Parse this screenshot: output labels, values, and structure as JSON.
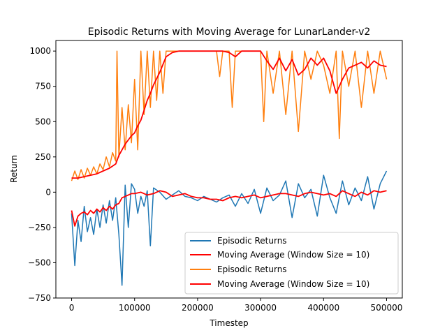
{
  "chart_data": {
    "type": "line",
    "title": "Episodic Returns with Moving Average for LunarLander-v2",
    "xlabel": "Timestep",
    "ylabel": "Return",
    "xlim": [
      -25000,
      525000
    ],
    "ylim": [
      -750,
      1075
    ],
    "xticks": [
      0,
      100000,
      200000,
      300000,
      400000,
      500000
    ],
    "xtick_labels": [
      "0",
      "100000",
      "200000",
      "300000",
      "400000",
      "500000"
    ],
    "yticks": [
      -750,
      -500,
      -250,
      0,
      250,
      500,
      750,
      1000
    ],
    "ytick_labels": [
      "−750",
      "−500",
      "−250",
      "0",
      "250",
      "500",
      "750",
      "1000"
    ],
    "grid": false,
    "legend_position": "lower-right",
    "series": [
      {
        "name": "Episodic Returns",
        "color": "#1f77b4",
        "x": [
          0,
          5000,
          10000,
          15000,
          20000,
          25000,
          30000,
          35000,
          40000,
          45000,
          50000,
          55000,
          60000,
          65000,
          70000,
          75000,
          80000,
          85000,
          90000,
          95000,
          100000,
          105000,
          110000,
          115000,
          120000,
          125000,
          130000,
          140000,
          150000,
          160000,
          170000,
          180000,
          190000,
          200000,
          210000,
          220000,
          230000,
          240000,
          250000,
          260000,
          270000,
          280000,
          290000,
          300000,
          310000,
          320000,
          330000,
          340000,
          350000,
          360000,
          370000,
          380000,
          390000,
          400000,
          410000,
          420000,
          430000,
          440000,
          450000,
          460000,
          470000,
          480000,
          490000,
          500000
        ],
        "values": [
          -150,
          -520,
          -200,
          -350,
          -100,
          -280,
          -180,
          -300,
          -120,
          -250,
          -90,
          -220,
          -60,
          -200,
          -40,
          -300,
          -660,
          50,
          -250,
          60,
          20,
          -150,
          -30,
          -100,
          10,
          -380,
          30,
          0,
          -50,
          -20,
          10,
          -30,
          -40,
          -60,
          -30,
          -50,
          -70,
          -40,
          -20,
          -100,
          -10,
          -80,
          20,
          -150,
          30,
          -60,
          -20,
          80,
          -180,
          60,
          -40,
          20,
          -170,
          120,
          -40,
          -150,
          80,
          -90,
          30,
          -60,
          110,
          -120,
          60,
          150
        ]
      },
      {
        "name": "Moving Average (Window Size = 10)",
        "color": "#ff0000",
        "x": [
          0,
          5000,
          10000,
          15000,
          20000,
          25000,
          30000,
          35000,
          40000,
          45000,
          50000,
          55000,
          60000,
          65000,
          70000,
          75000,
          80000,
          85000,
          90000,
          95000,
          100000,
          110000,
          120000,
          130000,
          140000,
          150000,
          160000,
          170000,
          180000,
          190000,
          200000,
          210000,
          220000,
          230000,
          240000,
          250000,
          260000,
          270000,
          280000,
          290000,
          300000,
          310000,
          320000,
          330000,
          340000,
          350000,
          360000,
          370000,
          380000,
          390000,
          400000,
          410000,
          420000,
          430000,
          440000,
          450000,
          460000,
          470000,
          480000,
          490000,
          500000
        ],
        "values": [
          -130,
          -240,
          -170,
          -150,
          -140,
          -160,
          -130,
          -150,
          -120,
          -140,
          -110,
          -130,
          -100,
          -120,
          -90,
          -80,
          -40,
          -30,
          -20,
          -10,
          -10,
          0,
          -20,
          -10,
          10,
          0,
          -30,
          -20,
          -10,
          -30,
          -40,
          -40,
          -50,
          -50,
          -60,
          -40,
          -30,
          -40,
          -30,
          -20,
          -40,
          -30,
          -20,
          -10,
          -10,
          -20,
          -30,
          -10,
          0,
          -10,
          -20,
          -10,
          -30,
          10,
          -10,
          -30,
          0,
          -20,
          10,
          0,
          10
        ]
      },
      {
        "name": "Episodic Returns",
        "color": "#ff7f0e",
        "x": [
          0,
          5000,
          10000,
          15000,
          20000,
          25000,
          30000,
          35000,
          40000,
          45000,
          50000,
          55000,
          60000,
          65000,
          70000,
          72000,
          75000,
          80000,
          85000,
          90000,
          95000,
          100000,
          105000,
          110000,
          115000,
          120000,
          125000,
          130000,
          135000,
          140000,
          145000,
          150000,
          160000,
          170000,
          180000,
          200000,
          220000,
          230000,
          235000,
          240000,
          250000,
          255000,
          260000,
          270000,
          280000,
          290000,
          300000,
          305000,
          310000,
          320000,
          330000,
          340000,
          350000,
          360000,
          370000,
          380000,
          390000,
          400000,
          410000,
          420000,
          425000,
          430000,
          440000,
          450000,
          460000,
          470000,
          480000,
          490000,
          500000
        ],
        "values": [
          80,
          150,
          90,
          160,
          100,
          170,
          120,
          180,
          130,
          200,
          160,
          250,
          180,
          280,
          220,
          1000,
          250,
          600,
          300,
          620,
          350,
          800,
          300,
          1000,
          550,
          1000,
          600,
          1000,
          650,
          1000,
          700,
          1000,
          1000,
          1000,
          1000,
          1000,
          1000,
          1000,
          820,
          1000,
          1000,
          600,
          1000,
          1000,
          1000,
          1000,
          1000,
          500,
          1000,
          700,
          1000,
          550,
          1000,
          430,
          1000,
          800,
          1000,
          900,
          700,
          1000,
          380,
          1000,
          750,
          1000,
          600,
          1000,
          700,
          1000,
          800
        ]
      },
      {
        "name": "Moving Average (Window Size = 10)",
        "color": "#ff0000",
        "x": [
          0,
          10000,
          20000,
          30000,
          40000,
          50000,
          60000,
          70000,
          75000,
          80000,
          85000,
          90000,
          95000,
          100000,
          105000,
          110000,
          115000,
          120000,
          125000,
          130000,
          140000,
          150000,
          160000,
          170000,
          180000,
          200000,
          220000,
          240000,
          250000,
          260000,
          270000,
          280000,
          290000,
          300000,
          310000,
          320000,
          330000,
          340000,
          350000,
          360000,
          370000,
          380000,
          390000,
          400000,
          410000,
          420000,
          430000,
          440000,
          450000,
          460000,
          470000,
          480000,
          490000,
          500000
        ],
        "values": [
          100,
          100,
          110,
          120,
          130,
          150,
          170,
          200,
          260,
          300,
          340,
          370,
          400,
          420,
          470,
          510,
          580,
          650,
          700,
          760,
          850,
          960,
          990,
          1000,
          1000,
          1000,
          1000,
          1000,
          990,
          960,
          1000,
          1000,
          1000,
          1000,
          930,
          870,
          950,
          860,
          940,
          830,
          870,
          950,
          900,
          950,
          860,
          700,
          800,
          880,
          900,
          920,
          880,
          930,
          900,
          890
        ]
      }
    ]
  }
}
